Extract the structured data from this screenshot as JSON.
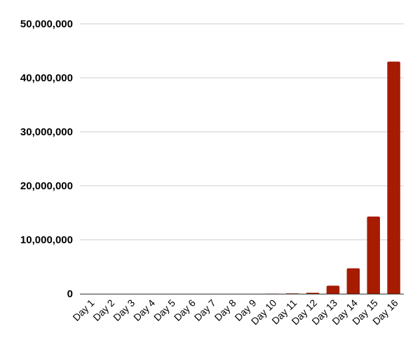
{
  "chart_data": {
    "type": "bar",
    "title": "",
    "xlabel": "",
    "ylabel": "",
    "categories": [
      "Day 1",
      "Day 2",
      "Day 3",
      "Day 4",
      "Day 5",
      "Day 6",
      "Day 7",
      "Day 8",
      "Day 9",
      "Day 10",
      "Day 11",
      "Day 12",
      "Day 13",
      "Day 14",
      "Day 15",
      "Day 16"
    ],
    "values": [
      1,
      3,
      9,
      27,
      81,
      243,
      729,
      2187,
      6561,
      19683,
      59049,
      177147,
      1500000,
      4700000,
      14300000,
      43000000
    ],
    "ylim": [
      0,
      50000000
    ],
    "y_ticks": [
      0,
      10000000,
      20000000,
      30000000,
      40000000,
      50000000
    ],
    "y_tick_labels": [
      "0",
      "10,000,000",
      "20,000,000",
      "30,000,000",
      "40,000,000",
      "50,000,000"
    ],
    "grid": true,
    "legend": "none",
    "bar_color": "#a61c00",
    "grid_color": "#cccccc",
    "axis_color": "#333333"
  }
}
